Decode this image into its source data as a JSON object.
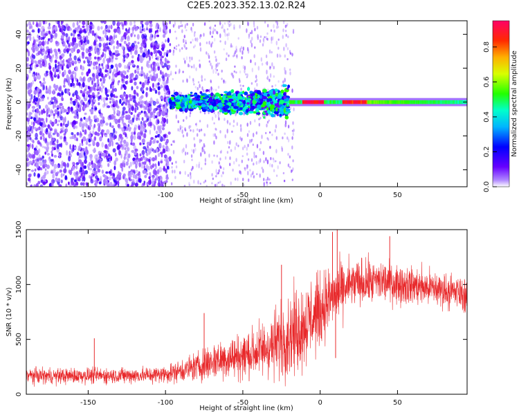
{
  "figure": {
    "title": "C2E5.2023.352.13.02.R24"
  },
  "colors": {
    "snr_line": "#e8282a",
    "axis": "#000000"
  },
  "chart_data": [
    {
      "type": "heatmap",
      "title": "",
      "xlabel": "Height of straight line (km)",
      "ylabel": "Frequency (Hz)",
      "xlim": [
        -190,
        95
      ],
      "ylim": [
        -50,
        48
      ],
      "x_ticks": [
        -150,
        -100,
        -50,
        0,
        50
      ],
      "y_ticks": [
        -40,
        -20,
        0,
        20,
        40
      ],
      "colorbar": {
        "label": "Normalized spectral amplitude",
        "range": [
          0.0,
          0.95
        ],
        "ticks": [
          0.0,
          0.2,
          0.4,
          0.6,
          0.8
        ],
        "colormap": "rainbow (purple-blue-cyan-green-yellow-orange-red-magenta)"
      },
      "features": [
        {
          "x_range": [
            -190,
            -97
          ],
          "description": "broadband scattered noise, amplitude ~0.05-0.15"
        },
        {
          "x_range": [
            -97,
            -20
          ],
          "description": "noisy band around 0 Hz widening to about ±7 Hz, amplitude ~0.2-0.5"
        },
        {
          "x_range": [
            -20,
            95
          ],
          "description": "narrow carrier line at 0 Hz, amplitude 0.4-0.95, peaks near x=-10..0 and 15..30"
        }
      ]
    },
    {
      "type": "line",
      "title": "",
      "xlabel": "Height of straight line (km)",
      "ylabel": "SNR (10 * v/v)",
      "xlim": [
        -190,
        95
      ],
      "ylim": [
        0,
        1500
      ],
      "x_ticks": [
        -150,
        -100,
        -50,
        0,
        50
      ],
      "y_ticks": [
        0,
        500,
        1000,
        1500
      ],
      "series": [
        {
          "x": [
            -190,
            -170,
            -150,
            -130,
            -110,
            -100,
            -90,
            -80,
            -70,
            -60,
            -50,
            -40,
            -30,
            -25,
            -20,
            -15,
            -10,
            -5,
            0,
            5,
            10,
            15,
            20,
            25,
            30,
            40,
            50,
            60,
            70,
            80,
            90,
            95
          ],
          "values": [
            170,
            165,
            170,
            170,
            175,
            185,
            215,
            250,
            300,
            330,
            350,
            390,
            450,
            500,
            540,
            590,
            640,
            700,
            760,
            850,
            900,
            950,
            1000,
            1010,
            1020,
            1030,
            1010,
            990,
            970,
            950,
            920,
            900
          ],
          "spread": [
            70,
            70,
            70,
            70,
            75,
            80,
            100,
            130,
            170,
            190,
            210,
            240,
            300,
            340,
            360,
            380,
            380,
            360,
            330,
            300,
            280,
            250,
            220,
            210,
            200,
            190,
            180,
            170,
            170,
            160,
            150,
            150
          ]
        }
      ],
      "spikes": [
        {
          "x": -146,
          "y": 510
        },
        {
          "x": -75,
          "y": 740
        },
        {
          "x": -25,
          "y": 1180
        },
        {
          "x": 8,
          "y": 1480
        },
        {
          "x": 11,
          "y": 1500
        },
        {
          "x": 10,
          "y": 330
        },
        {
          "x": 45,
          "y": 1440
        }
      ]
    }
  ]
}
